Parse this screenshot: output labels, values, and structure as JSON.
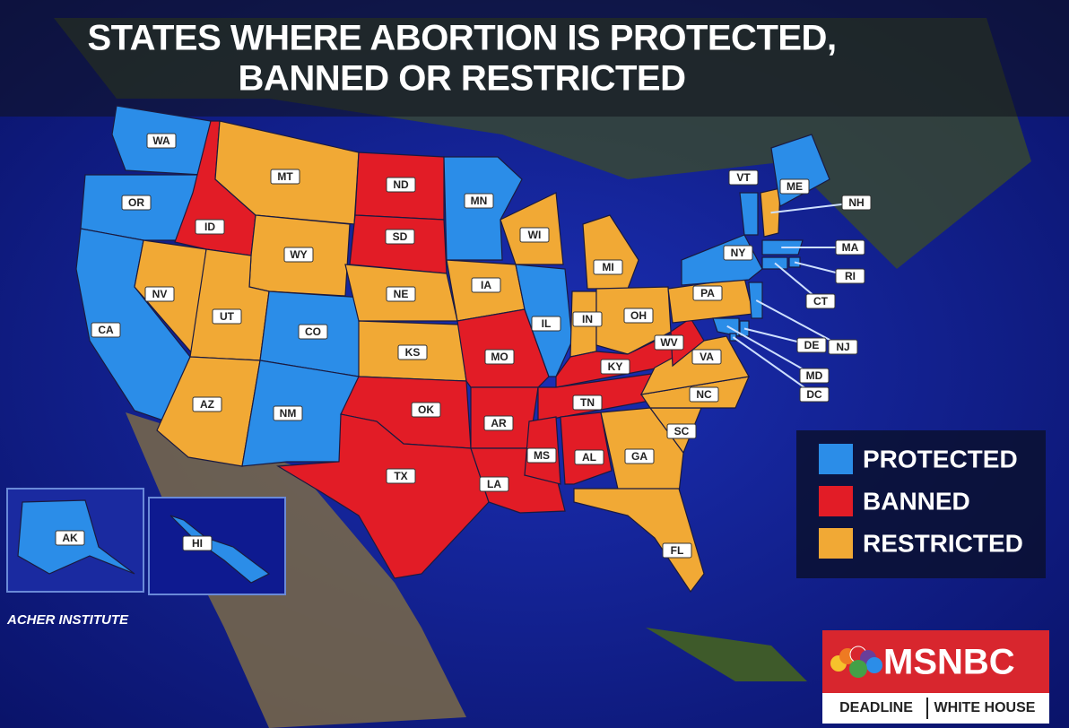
{
  "header": {
    "title_lines": [
      "STATES WHERE ABORTION IS PROTECTED,",
      "BANNED OR RESTRICTED"
    ]
  },
  "legend": [
    {
      "label": "PROTECTED",
      "color": "#2b8de8"
    },
    {
      "label": "BANNED",
      "color": "#e21c26"
    },
    {
      "label": "RESTRICTED",
      "color": "#f1a935"
    }
  ],
  "states": [
    {
      "label": "WA",
      "status": "PROTECTED"
    },
    {
      "label": "OR",
      "status": "PROTECTED"
    },
    {
      "label": "CA",
      "status": "PROTECTED"
    },
    {
      "label": "ID",
      "status": "BANNED"
    },
    {
      "label": "NV",
      "status": "RESTRICTED"
    },
    {
      "label": "MT",
      "status": "RESTRICTED"
    },
    {
      "label": "WY",
      "status": "RESTRICTED"
    },
    {
      "label": "UT",
      "status": "RESTRICTED"
    },
    {
      "label": "AZ",
      "status": "RESTRICTED"
    },
    {
      "label": "CO",
      "status": "PROTECTED"
    },
    {
      "label": "NM",
      "status": "PROTECTED"
    },
    {
      "label": "ND",
      "status": "BANNED"
    },
    {
      "label": "SD",
      "status": "BANNED"
    },
    {
      "label": "NE",
      "status": "RESTRICTED"
    },
    {
      "label": "KS",
      "status": "RESTRICTED"
    },
    {
      "label": "OK",
      "status": "BANNED"
    },
    {
      "label": "TX",
      "status": "BANNED"
    },
    {
      "label": "MN",
      "status": "PROTECTED"
    },
    {
      "label": "IA",
      "status": "RESTRICTED"
    },
    {
      "label": "MO",
      "status": "BANNED"
    },
    {
      "label": "AR",
      "status": "BANNED"
    },
    {
      "label": "LA",
      "status": "BANNED"
    },
    {
      "label": "WI",
      "status": "RESTRICTED"
    },
    {
      "label": "IL",
      "status": "PROTECTED"
    },
    {
      "label": "MI",
      "status": "RESTRICTED"
    },
    {
      "label": "IN",
      "status": "RESTRICTED"
    },
    {
      "label": "OH",
      "status": "RESTRICTED"
    },
    {
      "label": "KY",
      "status": "BANNED"
    },
    {
      "label": "TN",
      "status": "BANNED"
    },
    {
      "label": "MS",
      "status": "BANNED"
    },
    {
      "label": "AL",
      "status": "BANNED"
    },
    {
      "label": "GA",
      "status": "RESTRICTED"
    },
    {
      "label": "FL",
      "status": "RESTRICTED"
    },
    {
      "label": "SC",
      "status": "RESTRICTED"
    },
    {
      "label": "NC",
      "status": "RESTRICTED"
    },
    {
      "label": "VA",
      "status": "RESTRICTED"
    },
    {
      "label": "WV",
      "status": "BANNED"
    },
    {
      "label": "PA",
      "status": "RESTRICTED"
    },
    {
      "label": "NY",
      "status": "PROTECTED"
    },
    {
      "label": "VT",
      "status": "PROTECTED"
    },
    {
      "label": "NH",
      "status": "RESTRICTED"
    },
    {
      "label": "ME",
      "status": "PROTECTED"
    },
    {
      "label": "MA",
      "status": "PROTECTED"
    },
    {
      "label": "RI",
      "status": "PROTECTED"
    },
    {
      "label": "CT",
      "status": "PROTECTED"
    },
    {
      "label": "NJ",
      "status": "PROTECTED"
    },
    {
      "label": "DE",
      "status": "PROTECTED"
    },
    {
      "label": "MD",
      "status": "PROTECTED"
    },
    {
      "label": "DC",
      "status": "PROTECTED"
    },
    {
      "label": "AK",
      "status": "PROTECTED"
    },
    {
      "label": "HI",
      "status": "PROTECTED"
    }
  ],
  "source": "ACHER INSTITUTE",
  "logo": {
    "brand": "MSNBC",
    "show": [
      "DEADLINE",
      "WHITE HOUSE"
    ]
  }
}
